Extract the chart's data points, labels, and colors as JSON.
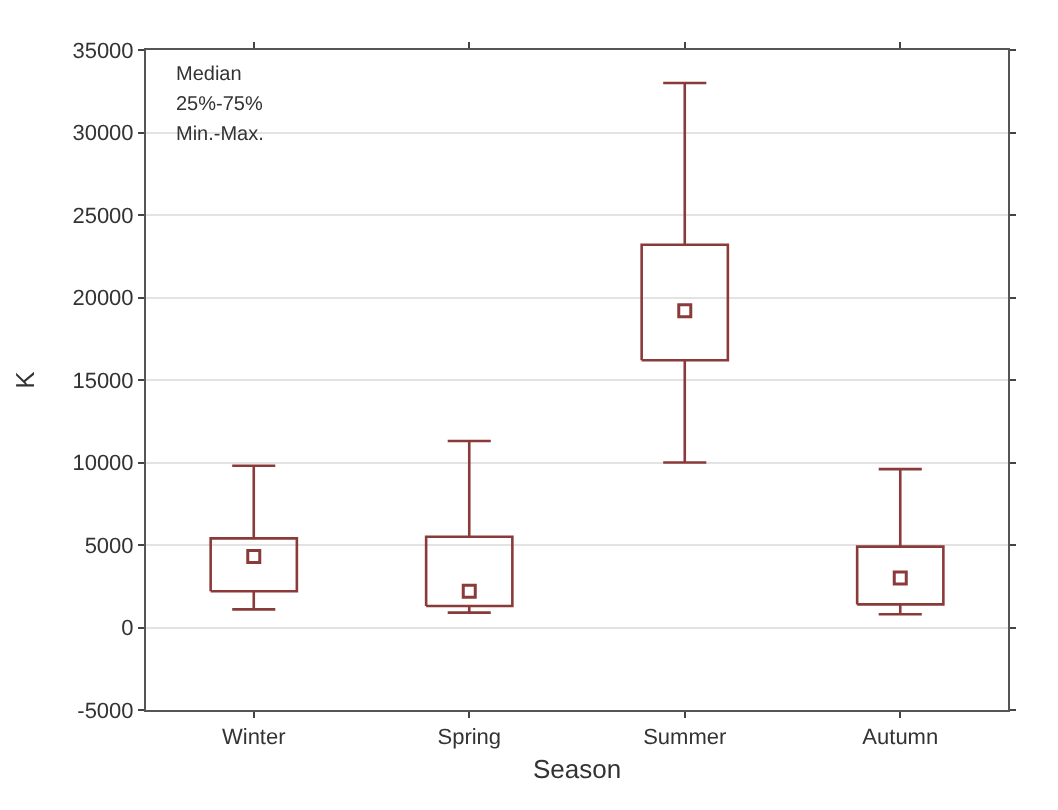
{
  "chart_data": {
    "type": "box",
    "xlabel": "Season",
    "ylabel": "K",
    "categories": [
      "Winter",
      "Spring",
      "Summer",
      "Autumn"
    ],
    "boxes": [
      {
        "low": 1100,
        "q1": 2200,
        "median": 4300,
        "q3": 5400,
        "high": 9800
      },
      {
        "low": 900,
        "q1": 1300,
        "median": 2200,
        "q3": 5500,
        "high": 11300
      },
      {
        "low": 10000,
        "q1": 16200,
        "median": 19200,
        "q3": 23200,
        "high": 33000
      },
      {
        "low": 800,
        "q1": 1400,
        "median": 3000,
        "q3": 4900,
        "high": 9600
      }
    ],
    "color": "#8b3a3a",
    "ylim": [
      -5000,
      35000
    ],
    "yticks": [
      -5000,
      0,
      5000,
      10000,
      15000,
      20000,
      25000,
      30000,
      35000
    ],
    "grid": "y",
    "annotations": [
      "Median",
      "25%-75%",
      "Min.-Max."
    ]
  }
}
